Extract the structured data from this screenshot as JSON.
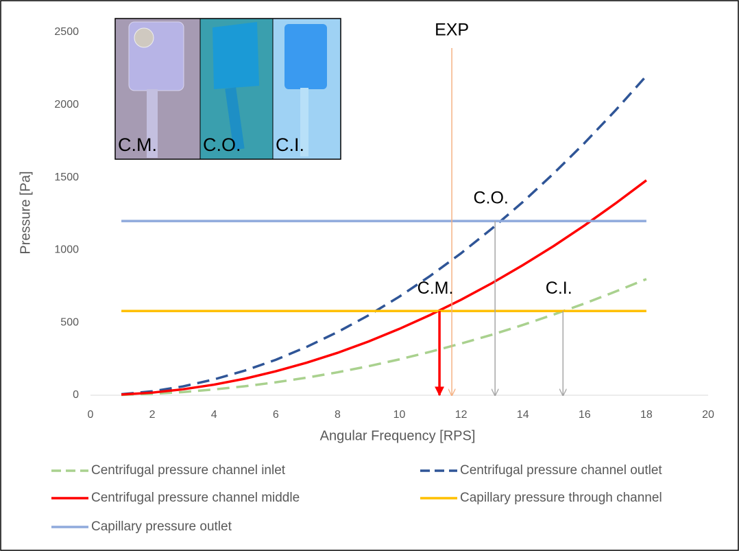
{
  "chart_data": {
    "type": "line",
    "x_label": "Angular Frequency [RPS]",
    "y_label": "Pressure [Pa]",
    "x": [
      1,
      2,
      3,
      4,
      5,
      6,
      7,
      8,
      9,
      10,
      11,
      12,
      13,
      14,
      15,
      16,
      17,
      18
    ],
    "series": [
      {
        "name": "Centrifugal pressure channel inlet",
        "color": "#a9d18e",
        "dash": "dashed",
        "values": [
          2.5,
          10,
          22,
          40,
          62,
          89,
          121,
          158,
          200,
          247,
          299,
          356,
          417,
          484,
          556,
          632,
          714,
          800
        ]
      },
      {
        "name": "Centrifugal pressure channel outlet",
        "color": "#2f5597",
        "dash": "dashed",
        "values": [
          7,
          27,
          61,
          109,
          170,
          244,
          333,
          435,
          550,
          679,
          822,
          978,
          1148,
          1331,
          1528,
          1738,
          1962,
          2200
        ]
      },
      {
        "name": "Centrifugal pressure channel middle",
        "color": "#ff0000",
        "dash": "solid",
        "values": [
          4.6,
          18,
          41,
          73,
          114,
          165,
          224,
          292,
          370,
          457,
          553,
          658,
          772,
          896,
          1028,
          1170,
          1321,
          1480
        ]
      },
      {
        "name": "Capillary pressure through channel",
        "color": "#ffc000",
        "dash": "solid",
        "values": [
          580,
          580,
          580,
          580,
          580,
          580,
          580,
          580,
          580,
          580,
          580,
          580,
          580,
          580,
          580,
          580,
          580,
          580
        ]
      },
      {
        "name": "Capillary pressure outlet",
        "color": "#8faadc",
        "dash": "solid",
        "values": [
          1200,
          1200,
          1200,
          1200,
          1200,
          1200,
          1200,
          1200,
          1200,
          1200,
          1200,
          1200,
          1200,
          1200,
          1200,
          1200,
          1200,
          1200
        ]
      }
    ],
    "xlim": [
      0,
      20
    ],
    "xticks": [
      0,
      2,
      4,
      6,
      8,
      10,
      12,
      14,
      16,
      18,
      20
    ],
    "ylim": [
      0,
      2500
    ],
    "yticks": [
      0,
      500,
      1000,
      1500,
      2000,
      2500
    ],
    "annotations": [
      {
        "text": "EXP",
        "x": 11.7,
        "color": "#f4b183"
      },
      {
        "text": "C.M.",
        "x": 11.3,
        "y": 580,
        "color": "#ff0000"
      },
      {
        "text": "C.O.",
        "x": 13.1,
        "y": 1200,
        "color": "#a6a6a6"
      },
      {
        "text": "C.I.",
        "x": 15.3,
        "y": 580,
        "color": "#a6a6a6"
      }
    ],
    "inset_labels": [
      "C.M.",
      "C.O.",
      "C.I."
    ]
  }
}
